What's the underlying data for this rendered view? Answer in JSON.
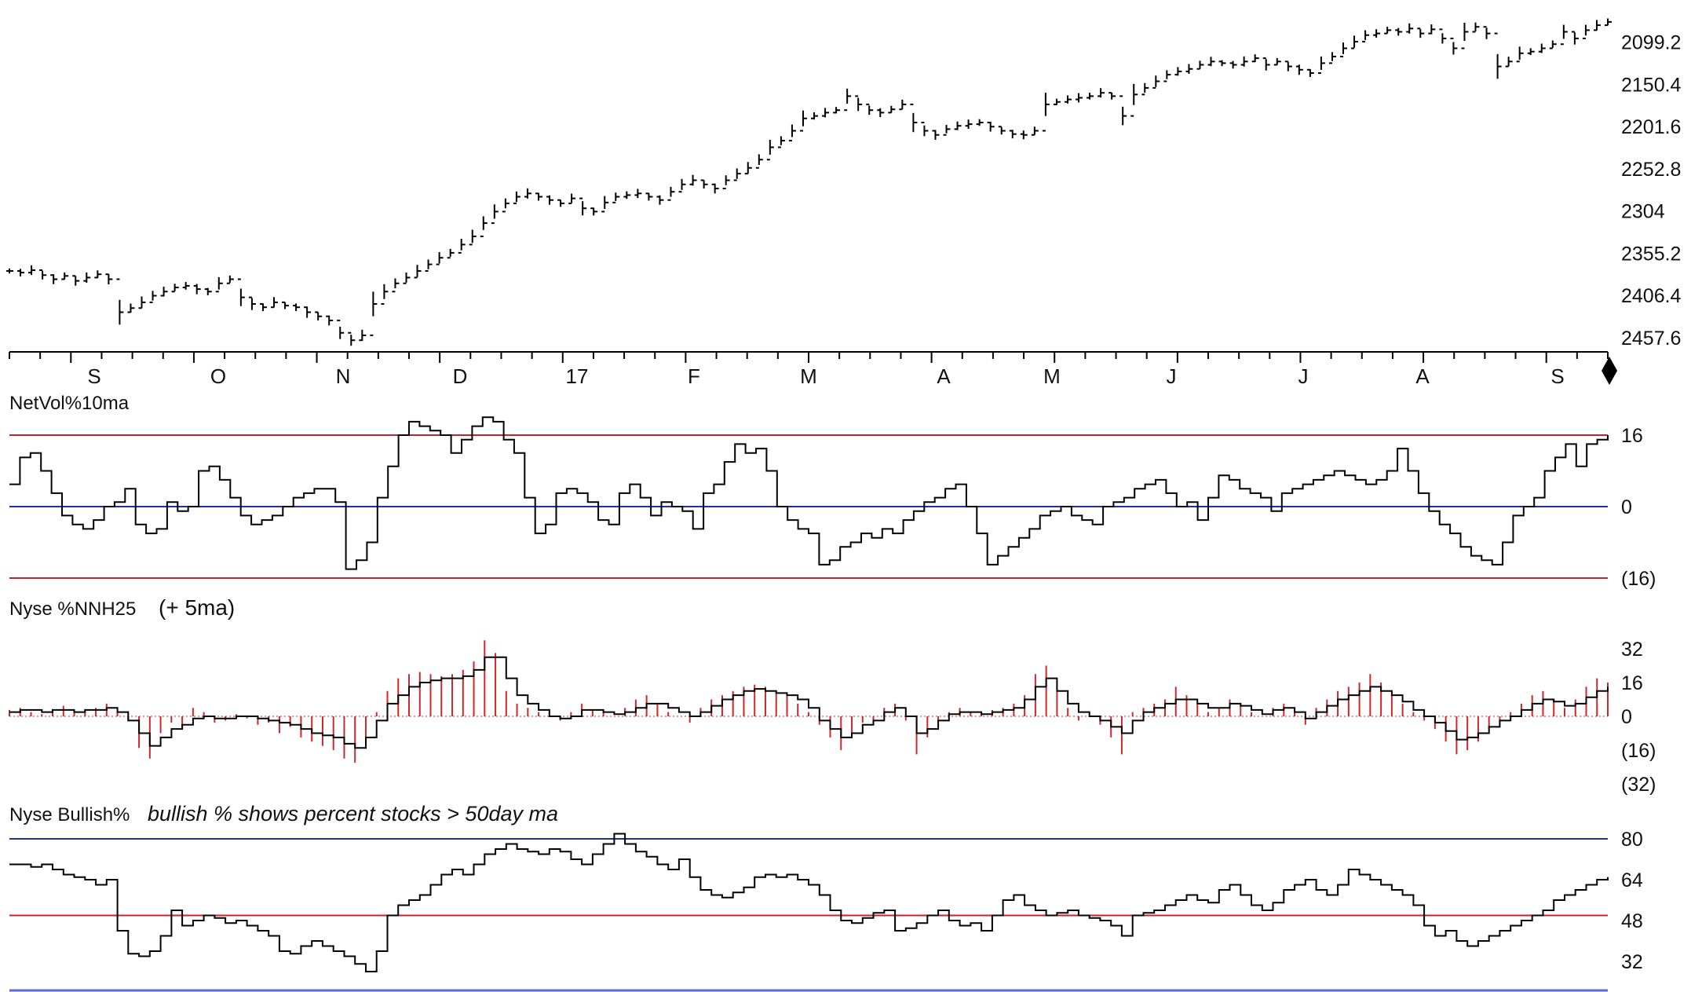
{
  "colors": {
    "price": "#000000",
    "indicator": "#000000",
    "bars": "#cc2a2a",
    "ref_red": "#c0262b",
    "ref_blue": "#1f2fa6",
    "bottom_rule": "#5a6be0"
  },
  "x_axis": {
    "months": [
      "S",
      "O",
      "N",
      "D",
      "17",
      "F",
      "M",
      "A",
      "M",
      "J",
      "J",
      "A",
      "S"
    ]
  },
  "panels": {
    "price": {
      "title": "",
      "tick_labels": [
        "2457.6",
        "2406.4",
        "2355.2",
        "2304",
        "2252.8",
        "2201.6",
        "2150.4",
        "2099.2"
      ]
    },
    "netvol": {
      "title": "NetVol%10ma",
      "tick_labels": [
        "16",
        "0",
        "(16)"
      ]
    },
    "nnh": {
      "title": "Nyse %NNH25",
      "note": "(+ 5ma)",
      "tick_labels": [
        "32",
        "16",
        "0",
        "(16)",
        "(32)"
      ]
    },
    "bullish": {
      "title": "Nyse Bullish%",
      "note": "bullish % shows percent stocks > 50day ma",
      "tick_labels": [
        "80",
        "64",
        "48",
        "32"
      ]
    }
  },
  "chart_data": [
    {
      "type": "line",
      "title": "",
      "ylim": [
        2080,
        2480
      ],
      "yticks": [
        2099.2,
        2150.4,
        2201.6,
        2252.8,
        2304,
        2355.2,
        2406.4,
        2457.6
      ],
      "x_labels": [
        "S",
        "O",
        "N",
        "D",
        "17",
        "F",
        "M",
        "A",
        "M",
        "J",
        "J",
        "A",
        "S"
      ],
      "series": [
        {
          "values": [
            2180,
            2178,
            2181,
            2175,
            2170,
            2174,
            2168,
            2172,
            2176,
            2170,
            2130,
            2135,
            2142,
            2150,
            2155,
            2160,
            2162,
            2158,
            2155,
            2165,
            2170,
            2148,
            2140,
            2136,
            2142,
            2138,
            2136,
            2130,
            2125,
            2120,
            2105,
            2096,
            2102,
            2140,
            2155,
            2165,
            2172,
            2180,
            2188,
            2196,
            2202,
            2212,
            2222,
            2238,
            2252,
            2262,
            2270,
            2274,
            2270,
            2266,
            2262,
            2268,
            2256,
            2252,
            2263,
            2270,
            2272,
            2274,
            2270,
            2266,
            2276,
            2285,
            2290,
            2285,
            2280,
            2290,
            2298,
            2305,
            2315,
            2330,
            2338,
            2350,
            2365,
            2368,
            2372,
            2375,
            2392,
            2382,
            2375,
            2372,
            2376,
            2382,
            2360,
            2350,
            2345,
            2352,
            2356,
            2358,
            2360,
            2355,
            2350,
            2346,
            2345,
            2350,
            2382,
            2385,
            2388,
            2390,
            2392,
            2396,
            2392,
            2368,
            2394,
            2402,
            2410,
            2418,
            2422,
            2425,
            2430,
            2434,
            2432,
            2430,
            2434,
            2438,
            2430,
            2434,
            2428,
            2424,
            2420,
            2432,
            2440,
            2450,
            2458,
            2466,
            2468,
            2472,
            2470,
            2474,
            2468,
            2473,
            2462,
            2450,
            2470,
            2476,
            2468,
            2428,
            2434,
            2444,
            2446,
            2450,
            2455,
            2470,
            2462,
            2472,
            2478,
            2482
          ]
        }
      ]
    },
    {
      "type": "line",
      "title": "NetVol%10ma",
      "ylim": [
        -16,
        16
      ],
      "yticks": [
        16,
        0,
        -16
      ],
      "reference_lines": [
        {
          "value": 16,
          "color": "red"
        },
        {
          "value": 0,
          "color": "blue"
        },
        {
          "value": -16,
          "color": "red"
        }
      ],
      "series": [
        {
          "values": [
            5,
            11,
            12,
            8,
            3,
            -2,
            -4,
            -5,
            -3,
            0,
            1,
            4,
            -4,
            -6,
            -5,
            1,
            -1,
            0,
            8,
            9,
            6,
            2,
            -2,
            -4,
            -3,
            -2,
            0,
            2,
            3,
            4,
            4,
            1,
            -14,
            -12,
            -8,
            2,
            9,
            16,
            19,
            18,
            17,
            16,
            12,
            15,
            18,
            20,
            19,
            15,
            12,
            2,
            -6,
            -4,
            3,
            4,
            3,
            1,
            -3,
            -4,
            3,
            5,
            2,
            -2,
            1,
            0,
            -1,
            -5,
            3,
            5,
            10,
            14,
            12,
            13,
            8,
            0,
            -3,
            -5,
            -6,
            -13,
            -12,
            -9,
            -8,
            -6,
            -7,
            -5,
            -6,
            -3,
            -1,
            1,
            2,
            4,
            5,
            0,
            -6,
            -13,
            -11,
            -9,
            -7,
            -5,
            -2,
            -1,
            0,
            -2,
            -3,
            -4,
            0,
            1,
            2,
            4,
            5,
            6,
            3,
            0,
            1,
            -3,
            2,
            7,
            6,
            4,
            3,
            2,
            -1,
            3,
            4,
            5,
            6,
            7,
            8,
            7,
            6,
            5,
            6,
            8,
            13,
            8,
            3,
            -1,
            -4,
            -6,
            -9,
            -11,
            -12,
            -13,
            -8,
            -2,
            0,
            2,
            8,
            11,
            14,
            9,
            14,
            15,
            16
          ]
        }
      ]
    },
    {
      "type": "bar",
      "title": "Nyse %NNH25",
      "note": "(+ 5ma)",
      "ylim": [
        -32,
        32
      ],
      "yticks": [
        32,
        16,
        0,
        -16,
        -32
      ],
      "series": [
        {
          "name": "bars",
          "values": [
            3,
            4,
            2,
            1,
            3,
            5,
            2,
            3,
            4,
            6,
            2,
            -2,
            -15,
            -20,
            -8,
            -3,
            -6,
            4,
            2,
            -3,
            -2,
            1,
            -1,
            -4,
            -3,
            -8,
            -5,
            -10,
            -12,
            -14,
            -16,
            -20,
            -22,
            -10,
            2,
            12,
            18,
            20,
            21,
            20,
            19,
            20,
            22,
            26,
            36,
            30,
            12,
            6,
            4,
            2,
            0,
            -2,
            2,
            6,
            3,
            2,
            0,
            4,
            8,
            10,
            6,
            2,
            0,
            -3,
            4,
            8,
            10,
            12,
            14,
            15,
            14,
            12,
            10,
            6,
            2,
            -4,
            -10,
            -16,
            -8,
            -3,
            -2,
            4,
            6,
            -2,
            -18,
            -10,
            -2,
            2,
            4,
            2,
            1,
            3,
            4,
            6,
            10,
            20,
            24,
            12,
            4,
            -2,
            0,
            -4,
            -10,
            -18,
            2,
            4,
            6,
            8,
            14,
            10,
            6,
            2,
            4,
            8,
            6,
            2,
            0,
            4,
            6,
            2,
            -4,
            4,
            8,
            12,
            14,
            16,
            20,
            16,
            10,
            6,
            2,
            -2,
            -6,
            -12,
            -18,
            -16,
            -12,
            -6,
            -2,
            2,
            6,
            10,
            12,
            8,
            4,
            8,
            14,
            18,
            16
          ]
        },
        {
          "name": "5ma",
          "values": [
            2,
            3,
            3,
            2,
            3,
            3,
            2,
            3,
            3,
            4,
            2,
            -2,
            -8,
            -14,
            -10,
            -6,
            -4,
            -1,
            0,
            -1,
            -1,
            0,
            0,
            -1,
            -2,
            -3,
            -4,
            -6,
            -8,
            -9,
            -10,
            -13,
            -15,
            -10,
            -2,
            6,
            10,
            14,
            16,
            17,
            18,
            18,
            19,
            22,
            28,
            28,
            18,
            10,
            6,
            3,
            0,
            -1,
            0,
            3,
            3,
            2,
            1,
            2,
            4,
            6,
            6,
            4,
            2,
            0,
            2,
            5,
            8,
            10,
            12,
            13,
            12,
            11,
            10,
            8,
            4,
            -2,
            -6,
            -10,
            -8,
            -4,
            -2,
            2,
            4,
            0,
            -8,
            -6,
            -2,
            1,
            2,
            2,
            1,
            2,
            3,
            4,
            8,
            14,
            18,
            12,
            6,
            2,
            0,
            -2,
            -5,
            -8,
            -2,
            2,
            4,
            6,
            8,
            8,
            6,
            4,
            4,
            6,
            5,
            3,
            1,
            3,
            4,
            2,
            -1,
            2,
            5,
            8,
            10,
            12,
            14,
            12,
            10,
            7,
            3,
            0,
            -3,
            -7,
            -11,
            -10,
            -8,
            -5,
            -2,
            0,
            3,
            6,
            8,
            7,
            5,
            6,
            9,
            12,
            14
          ]
        }
      ]
    },
    {
      "type": "line",
      "title": "Nyse Bullish%",
      "note": "bullish % shows percent stocks > 50day ma",
      "ylim": [
        24,
        84
      ],
      "yticks": [
        80,
        64,
        48,
        32
      ],
      "reference_lines": [
        {
          "value": 80,
          "color": "blue"
        },
        {
          "value": 50,
          "color": "red"
        }
      ],
      "series": [
        {
          "values": [
            70,
            70,
            69,
            70,
            68,
            66,
            65,
            64,
            62,
            64,
            44,
            35,
            34,
            36,
            42,
            52,
            46,
            48,
            50,
            49,
            47,
            48,
            46,
            44,
            42,
            36,
            35,
            38,
            40,
            38,
            36,
            34,
            31,
            28,
            36,
            50,
            54,
            56,
            58,
            62,
            66,
            68,
            66,
            70,
            74,
            76,
            78,
            76,
            75,
            74,
            76,
            75,
            72,
            70,
            74,
            78,
            82,
            78,
            75,
            73,
            70,
            68,
            72,
            65,
            60,
            58,
            57,
            59,
            61,
            65,
            66,
            65,
            66,
            64,
            62,
            58,
            52,
            48,
            47,
            49,
            51,
            52,
            44,
            45,
            47,
            50,
            52,
            48,
            46,
            47,
            44,
            50,
            56,
            58,
            54,
            52,
            50,
            51,
            52,
            50,
            49,
            48,
            46,
            42,
            50,
            51,
            52,
            54,
            56,
            58,
            56,
            55,
            60,
            62,
            58,
            54,
            52,
            55,
            60,
            62,
            64,
            60,
            58,
            62,
            68,
            66,
            64,
            62,
            60,
            58,
            54,
            46,
            42,
            44,
            40,
            38,
            40,
            42,
            44,
            46,
            48,
            50,
            52,
            56,
            58,
            60,
            62,
            64,
            65
          ]
        }
      ]
    }
  ]
}
